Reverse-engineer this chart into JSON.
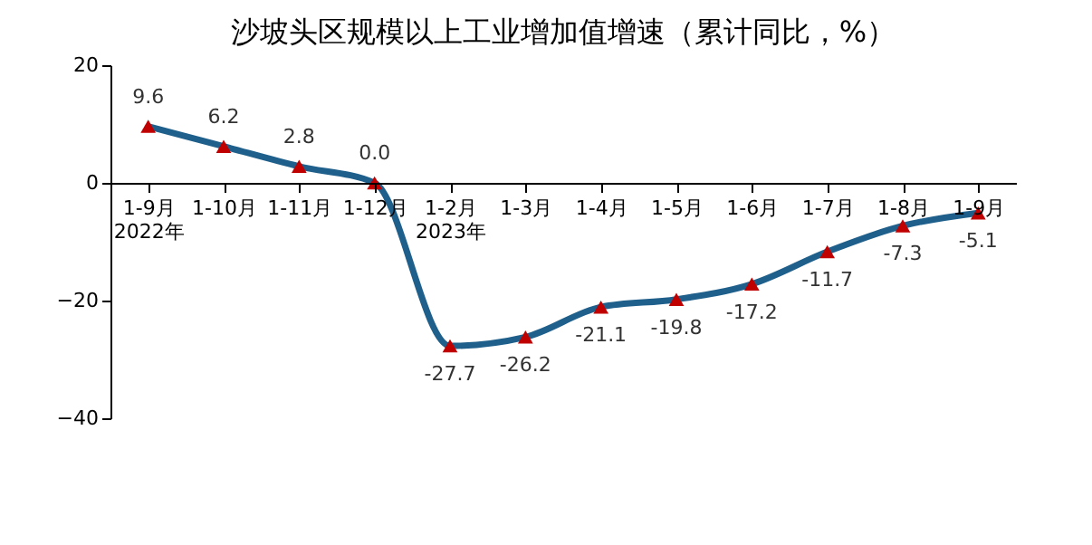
{
  "chart_data": {
    "type": "line",
    "title": "沙坡头区规模以上工业增加值增速（累计同比，%）",
    "categories": [
      "1-9月\n2022年",
      "1-10月",
      "1-11月",
      "1-12月",
      "1-2月\n2023年",
      "1-3月",
      "1-4月",
      "1-5月",
      "1-6月",
      "1-7月",
      "1-8月",
      "1-9月"
    ],
    "series": [
      {
        "color": "#1f5f8b",
        "values": [
          9.6,
          6.2,
          2.8,
          0.0,
          -27.7,
          -26.2,
          -21.1,
          -19.8,
          -17.2,
          -11.7,
          -7.3,
          -5.1
        ],
        "colors": [
          "#c00000",
          "#c00000",
          "#c00000",
          "#c00000",
          "#c00000",
          "#c00000",
          "#c00000",
          "#c00000",
          "#c00000",
          "#c00000",
          "#c00000",
          "#c00000"
        ],
        "value_labels": [
          "9.6",
          "6.2",
          "2.8",
          "0.0",
          "-27.7",
          "-26.2",
          "-21.1",
          "-19.8",
          "-17.2",
          "-11.7",
          "-7.3",
          "-5.1"
        ]
      }
    ],
    "marker": "triangle",
    "ylim": [
      -40,
      20
    ],
    "yticks": [
      -40,
      -20,
      0,
      20
    ],
    "grid": false
  }
}
